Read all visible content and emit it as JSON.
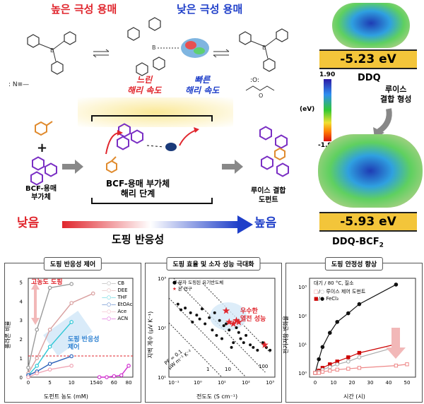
{
  "top": {
    "high_polarity": "높은 극성 용매",
    "low_polarity": "낮은 극성 용매",
    "slow_rate": [
      "느린",
      "해리 속도"
    ],
    "fast_rate": [
      "빠른",
      "해리 속도"
    ]
  },
  "mechanism": {
    "adduct_label": [
      "BCF-용매",
      "부가체"
    ],
    "step_label": [
      "BCF-용매 부가체",
      "해리 단계"
    ],
    "dopant_label": [
      "루이스 결합",
      "도펀트"
    ],
    "low": "낮음",
    "high": "높음",
    "reactivity": "도핑 반응성"
  },
  "right": {
    "ev_top": "-5.23 eV",
    "ddq": "DDQ",
    "scale_max": "1.90",
    "scale_min": "-1.90",
    "scale_unit": "(eV)",
    "lewis": [
      "루이스",
      "결합 형성"
    ],
    "ev_bottom": "-5.93 eV",
    "ddq_bcf": "DDQ-BCF",
    "ddq_bcf_sub": "2"
  },
  "panels": {
    "p1": {
      "title": "도핑 반응성 제어",
      "ylabel": "폴라론 비율",
      "xlabel": "도펀트 농도 (mM)",
      "annot_high": "고농도 도핑",
      "annot_ctrl": [
        "도핑 반응성",
        "제어"
      ],
      "legend": [
        "CB",
        "DEE",
        "THF",
        "EtOAc",
        "Ace",
        "ACN"
      ],
      "xticks": [
        "0",
        "5",
        "10",
        "15",
        "40",
        "60",
        "80"
      ],
      "yticks": [
        "0",
        "1",
        "2",
        "3",
        "4",
        "5"
      ]
    },
    "p2": {
      "title": "도핑 효율 및 소자 성능 극대화",
      "ylabel": "지벡 계수 (μV K⁻¹)",
      "xlabel": "전도도 (S cm⁻¹)",
      "legend": [
        "분자 도핑된 유기반도체",
        "본 연구"
      ],
      "annot": [
        "우수한",
        "열전 성능"
      ],
      "pf": [
        "PF = 0.1",
        "μW m⁻¹ K⁻²"
      ],
      "lines": [
        "1",
        "10",
        "100"
      ],
      "xticks": [
        "10⁻¹",
        "10⁰",
        "10¹",
        "10²",
        "10³"
      ],
      "yticks": [
        "10¹",
        "10²",
        "10³"
      ]
    },
    "p3": {
      "title": "도핑 안정성 향상",
      "ylabel": "전기저항 변화율",
      "xlabel": "시간 (시)",
      "cond": "대기 / 80 °C, 질소",
      "legend": [
        "루이스 제어 도펀트",
        "FeCl₃"
      ],
      "xticks": [
        "0",
        "10",
        "20",
        "30",
        "40",
        "50"
      ],
      "yticks": [
        "10⁰",
        "10¹",
        "10²",
        "10³"
      ]
    }
  },
  "chart_data": [
    {
      "type": "line",
      "title": "도핑 반응성 제어",
      "xlabel": "도펀트 농도 (mM)",
      "ylabel": "폴라론 비율",
      "series": [
        {
          "name": "CB",
          "x": [
            0,
            2,
            5,
            10
          ],
          "values": [
            0.5,
            2.5,
            4.7,
            4.9
          ]
        },
        {
          "name": "DEE",
          "x": [
            0,
            2,
            5,
            10,
            15
          ],
          "values": [
            0.2,
            1.0,
            2.5,
            3.9,
            4.4
          ]
        },
        {
          "name": "THF",
          "x": [
            0,
            2,
            5,
            10
          ],
          "values": [
            0.1,
            0.6,
            1.6,
            2.9
          ]
        },
        {
          "name": "EtOAc",
          "x": [
            0,
            2,
            5,
            10
          ],
          "values": [
            0.1,
            0.3,
            0.7,
            1.1
          ]
        },
        {
          "name": "Ace",
          "x": [
            0,
            2,
            5,
            10
          ],
          "values": [
            0.0,
            0.2,
            0.4,
            0.6
          ]
        },
        {
          "name": "ACN",
          "x": [
            40,
            50,
            60,
            70,
            80
          ],
          "values": [
            0.0,
            0.0,
            0.05,
            0.1,
            0.6
          ]
        }
      ]
    },
    {
      "type": "scatter",
      "title": "도핑 효율 및 소자 성능 극대화",
      "xlabel": "전도도 (S cm⁻¹)",
      "ylabel": "지벡 계수 (μV K⁻¹)",
      "series": [
        {
          "name": "분자 도핑된 유기반도체",
          "x": [
            0.15,
            0.2,
            0.3,
            0.5,
            0.6,
            0.9,
            1.2,
            1.5,
            2,
            3,
            4,
            5,
            6,
            8,
            10,
            12,
            15,
            20,
            25,
            30,
            40,
            50,
            60,
            80,
            100,
            150,
            200,
            300,
            500,
            700,
            1000
          ],
          "values": [
            300,
            230,
            250,
            200,
            130,
            180,
            150,
            240,
            120,
            160,
            90,
            200,
            70,
            140,
            60,
            110,
            120,
            90,
            40,
            50,
            100,
            80,
            60,
            50,
            70,
            45,
            40,
            35,
            50,
            40,
            35
          ]
        },
        {
          "name": "본 연구",
          "x": [
            15,
            20,
            30,
            40,
            50,
            600
          ],
          "values": [
            220,
            130,
            120,
            140,
            130,
            45
          ]
        }
      ]
    },
    {
      "type": "line",
      "title": "도핑 안정성 향상",
      "xlabel": "시간 (시)",
      "ylabel": "전기저항 변화율",
      "series": [
        {
          "name": "FeCl₃ (대기)",
          "x": [
            0,
            2,
            4,
            8,
            12,
            18,
            24,
            44
          ],
          "values": [
            1,
            3,
            8,
            25,
            60,
            120,
            250,
            1200
          ]
        },
        {
          "name": "FeCl₃ (질소)",
          "x": [
            0,
            2,
            4,
            8,
            12,
            18,
            24,
            44
          ],
          "values": [
            1,
            1.2,
            1.5,
            2,
            2.5,
            3.5,
            5,
            10
          ]
        },
        {
          "name": "루이스 제어 도펀트 (대기)",
          "x": [
            0,
            2,
            4,
            8,
            12,
            18,
            24,
            44
          ],
          "values": [
            1,
            1.1,
            1.3,
            1.6,
            2,
            2.5,
            3.5,
            8
          ]
        },
        {
          "name": "루이스 제어 도펀트 (질소)",
          "x": [
            0,
            2,
            4,
            8,
            12,
            18,
            24,
            44,
            50
          ],
          "values": [
            1,
            1,
            1.1,
            1.2,
            1.3,
            1.4,
            1.5,
            1.8,
            2
          ]
        }
      ]
    }
  ]
}
